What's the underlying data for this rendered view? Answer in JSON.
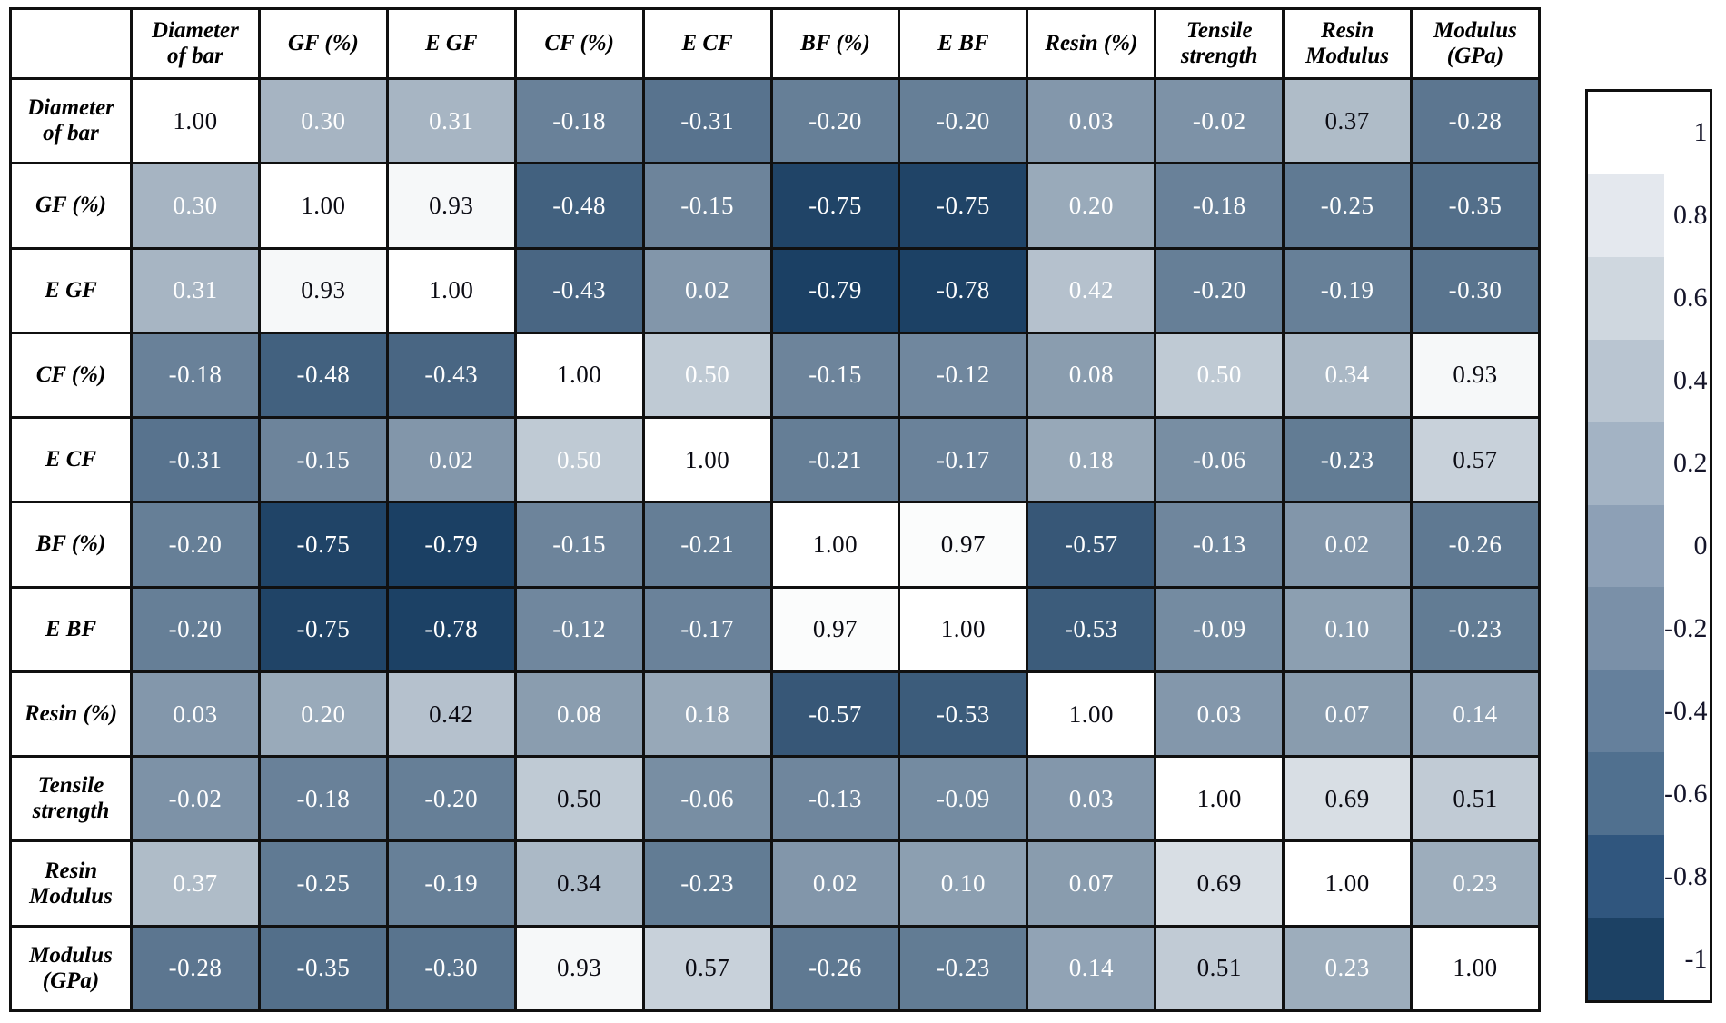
{
  "chart_data": {
    "type": "heatmap",
    "variables": [
      "Diameter of bar",
      "GF (%)",
      "E GF",
      "CF (%)",
      "E CF",
      "BF (%)",
      "E BF",
      "Resin (%)",
      "Tensile strength",
      "Resin Modulus",
      "Modulus (GPa)"
    ],
    "values": [
      [
        "1.00",
        "0.30",
        "0.31",
        "-0.18",
        "-0.31",
        "-0.20",
        "-0.20",
        "0.03",
        "-0.02",
        "0.37",
        "-0.28"
      ],
      [
        "0.30",
        "1.00",
        "0.93",
        "-0.48",
        "-0.15",
        "-0.75",
        "-0.75",
        "0.20",
        "-0.18",
        "-0.25",
        "-0.35"
      ],
      [
        "0.31",
        "0.93",
        "1.00",
        "-0.43",
        "0.02",
        "-0.79",
        "-0.78",
        "0.42",
        "-0.20",
        "-0.19",
        "-0.30"
      ],
      [
        "-0.18",
        "-0.48",
        "-0.43",
        "1.00",
        "0.50",
        "-0.15",
        "-0.12",
        "0.08",
        "0.50",
        "0.34",
        "0.93"
      ],
      [
        "-0.31",
        "-0.15",
        "0.02",
        "0.50",
        "1.00",
        "-0.21",
        "-0.17",
        "0.18",
        "-0.06",
        "-0.23",
        "0.57"
      ],
      [
        "-0.20",
        "-0.75",
        "-0.79",
        "-0.15",
        "-0.21",
        "1.00",
        "0.97",
        "-0.57",
        "-0.13",
        "0.02",
        "-0.26"
      ],
      [
        "-0.20",
        "-0.75",
        "-0.78",
        "-0.12",
        "-0.17",
        "0.97",
        "1.00",
        "-0.53",
        "-0.09",
        "0.10",
        "-0.23"
      ],
      [
        "0.03",
        "0.20",
        "0.42",
        "0.08",
        "0.18",
        "-0.57",
        "-0.53",
        "1.00",
        "0.03",
        "0.07",
        "0.14"
      ],
      [
        "-0.02",
        "-0.18",
        "-0.20",
        "0.50",
        "-0.06",
        "-0.13",
        "-0.09",
        "0.03",
        "1.00",
        "0.69",
        "0.51"
      ],
      [
        "0.37",
        "-0.25",
        "-0.19",
        "0.34",
        "-0.23",
        "0.02",
        "0.10",
        "0.07",
        "0.69",
        "1.00",
        "0.23"
      ],
      [
        "-0.28",
        "-0.35",
        "-0.30",
        "0.93",
        "0.57",
        "-0.26",
        "-0.23",
        "0.14",
        "0.51",
        "0.23",
        "1.00"
      ]
    ],
    "value_range": [
      -1,
      1
    ],
    "colorbar": {
      "position": "right",
      "ticks": [
        "1",
        "0.8",
        "0.6",
        "0.4",
        "0.2",
        "0",
        "-0.2",
        "-0.4",
        "-0.6",
        "-0.8",
        "-1"
      ],
      "colors": [
        "#ffffff",
        "#e4e8ee",
        "#cfd7df",
        "#b9c5d1",
        "#a3b3c4",
        "#8da0b6",
        "#7a90a8",
        "#65809c",
        "#50708f",
        "#30567e",
        "#1c4164"
      ]
    },
    "colormap": {
      "high_value_color": "#ffffff",
      "low_value_color": "#1b4064",
      "domain": [
        1,
        -0.79
      ]
    },
    "dark_text_cells": [
      [
        0,
        0
      ],
      [
        0,
        9
      ],
      [
        1,
        1
      ],
      [
        1,
        2
      ],
      [
        2,
        1
      ],
      [
        2,
        2
      ],
      [
        3,
        3
      ],
      [
        3,
        10
      ],
      [
        4,
        4
      ],
      [
        4,
        10
      ],
      [
        5,
        5
      ],
      [
        5,
        6
      ],
      [
        6,
        5
      ],
      [
        6,
        6
      ],
      [
        7,
        2
      ],
      [
        7,
        7
      ],
      [
        8,
        3
      ],
      [
        8,
        8
      ],
      [
        8,
        9
      ],
      [
        8,
        10
      ],
      [
        9,
        3
      ],
      [
        9,
        8
      ],
      [
        9,
        9
      ],
      [
        10,
        3
      ],
      [
        10,
        4
      ],
      [
        10,
        8
      ],
      [
        10,
        10
      ]
    ]
  },
  "colors": {
    "background": "#ffffff",
    "grid": "#101010",
    "cell_text_light": "#ffffff",
    "cell_text_dark": "#0a0a12",
    "header_text": "#000000",
    "legend_text": "#15152a"
  }
}
